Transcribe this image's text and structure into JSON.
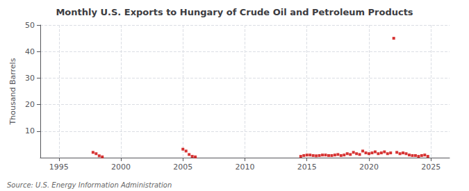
{
  "chart_data": {
    "type": "scatter",
    "title": "Monthly U.S. Exports to Hungary of Crude Oil and Petroleum Products",
    "ylabel": "Thousand Barrels",
    "source": "Source: U.S. Energy Information Administration",
    "x": [
      1997.75,
      1998.0,
      1998.25,
      1998.5,
      2005.0,
      2005.25,
      2005.5,
      2005.75,
      2006.0,
      2014.5,
      2014.75,
      2015.0,
      2015.25,
      2015.5,
      2015.75,
      2016.0,
      2016.25,
      2016.5,
      2016.75,
      2017.0,
      2017.25,
      2017.5,
      2017.75,
      2018.0,
      2018.25,
      2018.5,
      2018.75,
      2019.0,
      2019.25,
      2019.5,
      2019.75,
      2020.0,
      2020.25,
      2020.5,
      2020.75,
      2021.0,
      2021.25,
      2021.5,
      2021.75,
      2022.0,
      2022.25,
      2022.5,
      2022.75,
      2023.0,
      2023.25,
      2023.5,
      2023.75,
      2024.0,
      2024.25,
      2024.5,
      2024.75
    ],
    "values": [
      2.0,
      1.5,
      0.7,
      0.3,
      3.2,
      2.5,
      1.2,
      0.5,
      0.3,
      0.5,
      0.8,
      1.0,
      1.0,
      0.8,
      0.7,
      0.8,
      1.0,
      1.0,
      0.8,
      0.8,
      1.0,
      1.2,
      0.8,
      1.0,
      1.5,
      1.2,
      2.0,
      1.5,
      1.2,
      2.5,
      1.8,
      1.5,
      1.8,
      2.2,
      1.5,
      1.8,
      2.2,
      1.5,
      1.8,
      45.0,
      2.0,
      1.5,
      1.8,
      1.5,
      1.0,
      0.8,
      0.8,
      0.5,
      0.8,
      1.0,
      0.5
    ],
    "color": "#cc0000",
    "marker": "square",
    "xlim": [
      1993.5,
      2026.5
    ],
    "xticks": [
      1995,
      2000,
      2005,
      2010,
      2015,
      2020,
      2025
    ],
    "ylim": [
      0,
      50
    ],
    "yticks": [
      10,
      20,
      30,
      40,
      50
    ],
    "grid": true
  }
}
